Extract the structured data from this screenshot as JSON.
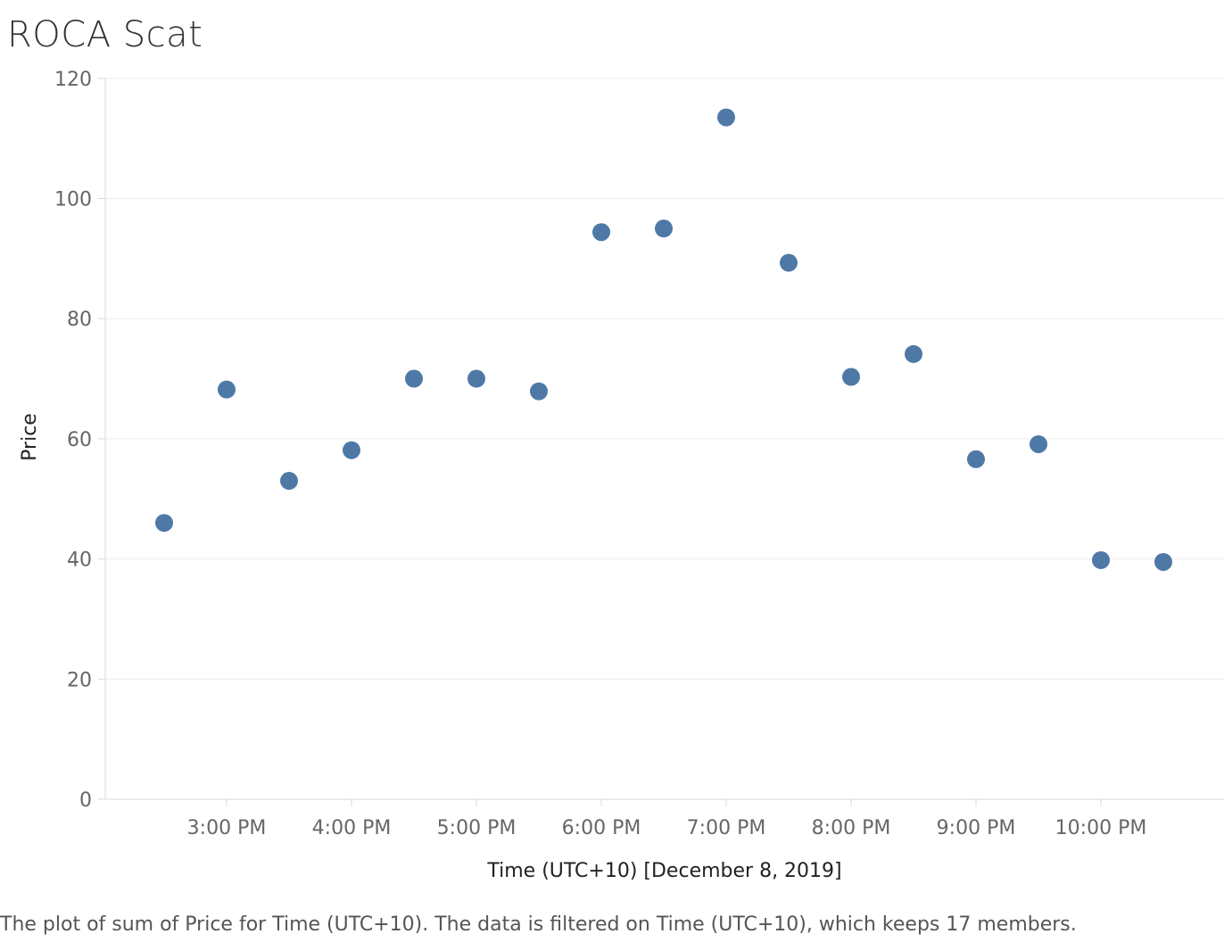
{
  "title": "ROCA Scat",
  "caption": "The plot of sum of Price for Time (UTC+10). The data is filtered on Time (UTC+10), which keeps 17 members.",
  "colors": {
    "marker": "#4e79a7",
    "gridline": "#ececec",
    "axis": "#d9d9d9"
  },
  "chart_data": {
    "type": "scatter",
    "title": "ROCA Scat",
    "xlabel": "Time (UTC+10) [December 8, 2019]",
    "ylabel": "Price",
    "x_ticks": [
      "3:00 PM",
      "4:00 PM",
      "5:00 PM",
      "6:00 PM",
      "7:00 PM",
      "8:00 PM",
      "9:00 PM",
      "10:00 PM"
    ],
    "y_ticks": [
      0,
      20,
      40,
      60,
      80,
      100,
      120
    ],
    "ylim": [
      0,
      120
    ],
    "xlim": [
      "2:05 PM",
      "11:10 PM"
    ],
    "grid": true,
    "points": [
      {
        "x": "2:30 PM",
        "y": 46
      },
      {
        "x": "3:00 PM",
        "y": 68.2
      },
      {
        "x": "3:30 PM",
        "y": 53
      },
      {
        "x": "4:00 PM",
        "y": 58.1
      },
      {
        "x": "4:30 PM",
        "y": 70
      },
      {
        "x": "5:00 PM",
        "y": 70
      },
      {
        "x": "5:30 PM",
        "y": 67.9
      },
      {
        "x": "6:00 PM",
        "y": 94.4
      },
      {
        "x": "6:30 PM",
        "y": 95
      },
      {
        "x": "7:00 PM",
        "y": 113.5
      },
      {
        "x": "7:30 PM",
        "y": 89.3
      },
      {
        "x": "8:00 PM",
        "y": 70.3
      },
      {
        "x": "8:30 PM",
        "y": 74.1
      },
      {
        "x": "9:00 PM",
        "y": 56.6
      },
      {
        "x": "9:30 PM",
        "y": 59.1
      },
      {
        "x": "10:00 PM",
        "y": 39.8
      },
      {
        "x": "10:30 PM",
        "y": 39.5
      }
    ]
  }
}
